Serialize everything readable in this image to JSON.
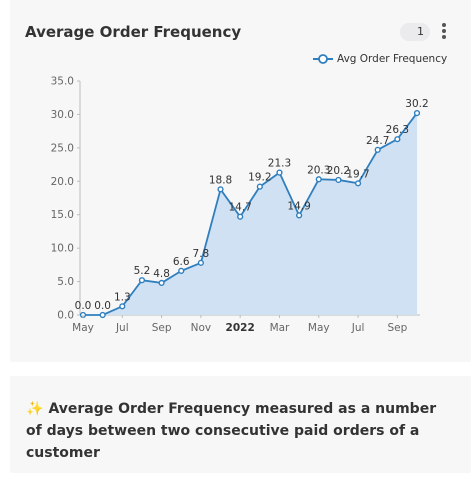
{
  "card": {
    "title": "Average Order Frequency",
    "badge": "1",
    "menu_icon": "kebab-vertical-icon"
  },
  "note": {
    "icon": "sparkles-icon",
    "emoji": "✨",
    "text": "Average Order Frequency measured as a number of days between two consecutive paid orders of a customer"
  },
  "colors": {
    "line": "#2f7fbf",
    "area": "#cfe1f3",
    "grid": "#d9d9d9",
    "axis_text": "#666666",
    "label_text": "#333333"
  },
  "chart_data": {
    "type": "area",
    "title": "Average Order Frequency",
    "legend_position": "top-right",
    "grid": false,
    "series": [
      {
        "name": "Avg Order Frequency",
        "x": [
          "2021-05",
          "2021-06",
          "2021-07",
          "2021-08",
          "2021-09",
          "2021-10",
          "2021-11",
          "2021-12",
          "2022-01",
          "2022-02",
          "2022-03",
          "2022-04",
          "2022-05",
          "2022-06",
          "2022-07",
          "2022-08",
          "2022-09",
          "2022-10"
        ],
        "values": [
          0.0,
          0.0,
          1.3,
          5.2,
          4.8,
          6.6,
          7.8,
          18.8,
          14.7,
          19.2,
          21.3,
          14.9,
          20.3,
          20.2,
          19.7,
          24.7,
          26.3,
          30.2
        ],
        "labels": [
          "0.0",
          "0.0",
          "1.3",
          "5.2",
          "4.8",
          "6.6",
          "7.8",
          "18.8",
          "14.7",
          "19.2",
          "21.3",
          "14.9",
          "20.3",
          "20.2",
          "19.7",
          "24.7",
          "26.3",
          "30.2"
        ]
      }
    ],
    "x_ticks": [
      {
        "label": "May",
        "index": 0,
        "bold": false
      },
      {
        "label": "Jul",
        "index": 2,
        "bold": false
      },
      {
        "label": "Sep",
        "index": 4,
        "bold": false
      },
      {
        "label": "Nov",
        "index": 6,
        "bold": false
      },
      {
        "label": "2022",
        "index": 8,
        "bold": true
      },
      {
        "label": "Mar",
        "index": 10,
        "bold": false
      },
      {
        "label": "May",
        "index": 12,
        "bold": false
      },
      {
        "label": "Jul",
        "index": 14,
        "bold": false
      },
      {
        "label": "Sep",
        "index": 16,
        "bold": false
      }
    ],
    "y_ticks": [
      "0.0",
      "5.0",
      "10.0",
      "15.0",
      "20.0",
      "25.0",
      "30.0",
      "35.0"
    ],
    "ylim": [
      0,
      35
    ]
  }
}
